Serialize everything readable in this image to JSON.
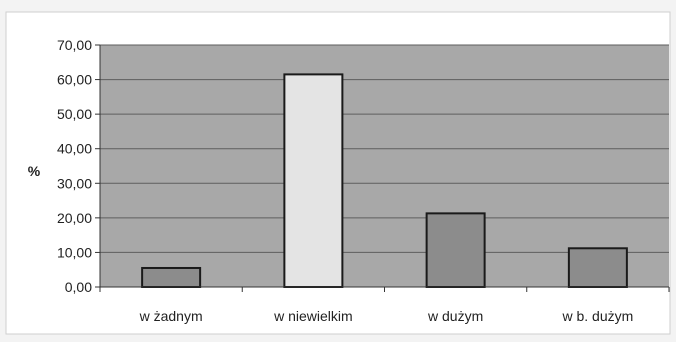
{
  "chart_data": {
    "type": "bar",
    "title": "",
    "xlabel": "",
    "ylabel": "%",
    "categories": [
      "w żadnym",
      "w niewielkim",
      "w dużym",
      "w b. dużym"
    ],
    "values": [
      5.5,
      61.5,
      21.3,
      11.2
    ],
    "bar_colors": [
      "#8c8c8c",
      "#e4e4e4",
      "#8c8c8c",
      "#8c8c8c"
    ],
    "ylim": [
      0,
      70
    ],
    "yticks": [
      "0,00",
      "10,00",
      "20,00",
      "30,00",
      "40,00",
      "50,00",
      "60,00",
      "70,00"
    ],
    "grid": true,
    "legend": "none",
    "plot_background": "#a8a8a8",
    "page_background": "#f3f3f3"
  }
}
